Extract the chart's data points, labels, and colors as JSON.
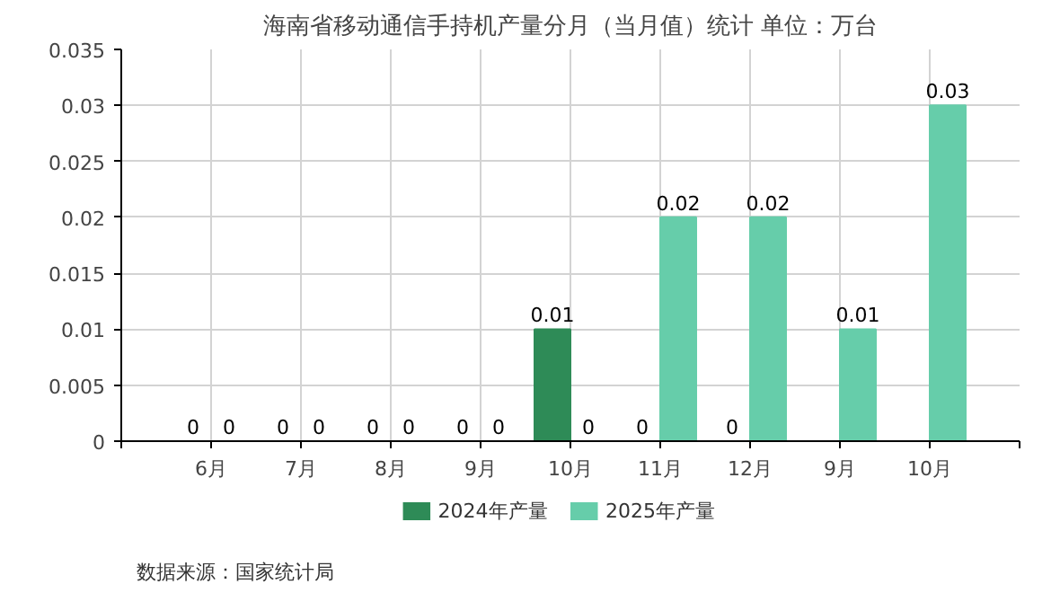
{
  "chart_data": {
    "type": "bar",
    "title": "海南省移动通信手持机产量分月（当月值）统计 单位：万台",
    "categories": [
      "6月",
      "7月",
      "8月",
      "9月",
      "10月",
      "11月",
      "12月",
      "9月",
      "10月"
    ],
    "series": [
      {
        "name": "2024年产量",
        "color": "#2e8b57",
        "values": [
          0,
          0,
          0,
          0,
          0.01,
          0,
          0,
          null,
          null
        ]
      },
      {
        "name": "2025年产量",
        "color": "#66cdaa",
        "values": [
          0,
          0,
          0,
          0,
          0,
          0.02,
          0.02,
          0.01,
          0.03
        ]
      }
    ],
    "ylim": [
      0,
      0.035
    ],
    "yticks": [
      0,
      {
        "value": 0.005,
        "label": "0.005"
      },
      {
        "value": 0.01,
        "label": "0.01"
      },
      {
        "value": 0.015,
        "label": "0.015"
      },
      {
        "value": 0.02,
        "label": "0.02"
      },
      {
        "value": 0.025,
        "label": "0.025"
      },
      {
        "value": 0.03,
        "label": "0.03"
      },
      {
        "value": 0.035,
        "label": "0.035"
      }
    ],
    "grid": true,
    "legend": "bottom",
    "data_labels": true,
    "annotations": [
      "数据来源：国家统计局"
    ]
  }
}
